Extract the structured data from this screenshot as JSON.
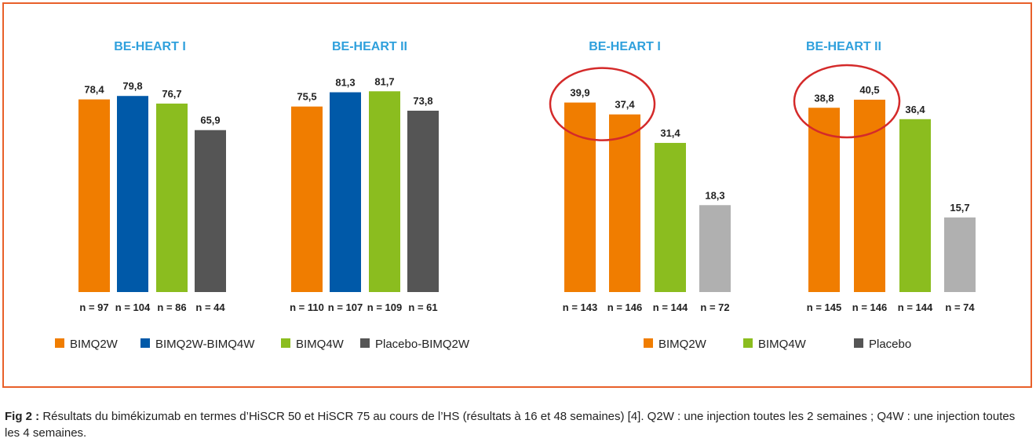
{
  "colors": {
    "frame": "#e8602a",
    "title": "#2fa0dc",
    "circle": "#d42a2a",
    "BIMQ2W": "#f07d00",
    "BIMQ2W-BIMQ4W": "#0059a8",
    "BIMQ4W": "#8bbd1f",
    "Placebo-BIMQ2W": "#555555",
    "Placebo": "#b0b0b0"
  },
  "chart_data": [
    {
      "type": "bar",
      "title": "BE-HEART I",
      "categories": [
        "n = 97",
        "n = 104",
        "n = 86",
        "n = 44"
      ],
      "series_labels": [
        "BIMQ2W",
        "BIMQ2W-BIMQ4W",
        "BIMQ4W",
        "Placebo-BIMQ2W"
      ],
      "values": [
        78.4,
        79.8,
        76.7,
        65.9
      ],
      "value_labels": [
        "78,4",
        "79,8",
        "76,7",
        "65,9"
      ],
      "ylim": [
        0,
        100
      ]
    },
    {
      "type": "bar",
      "title": "BE-HEART II",
      "categories": [
        "n = 110",
        "n = 107",
        "n = 109",
        "n = 61"
      ],
      "series_labels": [
        "BIMQ2W",
        "BIMQ2W-BIMQ4W",
        "BIMQ4W",
        "Placebo-BIMQ2W"
      ],
      "values": [
        75.5,
        81.3,
        81.7,
        73.8
      ],
      "value_labels": [
        "75,5",
        "81,3",
        "81,7",
        "73,8"
      ],
      "ylim": [
        0,
        100
      ]
    },
    {
      "type": "bar",
      "title": "BE-HEART I",
      "categories": [
        "n = 143",
        "n = 146",
        "n = 144",
        "n = 72"
      ],
      "series_labels": [
        "BIMQ2W",
        "BIMQ2W",
        "BIMQ4W",
        "Placebo"
      ],
      "values": [
        39.9,
        37.4,
        31.4,
        18.3
      ],
      "value_labels": [
        "39,9",
        "37,4",
        "31,4",
        "18,3"
      ],
      "ylim": [
        0,
        50
      ],
      "highlight": [
        0,
        1
      ]
    },
    {
      "type": "bar",
      "title": "BE-HEART II",
      "categories": [
        "n = 145",
        "n = 146",
        "n = 144",
        "n = 74"
      ],
      "series_labels": [
        "BIMQ2W",
        "BIMQ2W",
        "BIMQ4W",
        "Placebo"
      ],
      "values": [
        38.8,
        40.5,
        36.4,
        15.7
      ],
      "value_labels": [
        "38,8",
        "40,5",
        "36,4",
        "15,7"
      ],
      "ylim": [
        0,
        50
      ],
      "highlight": [
        0,
        1
      ]
    }
  ],
  "legends": [
    {
      "items": [
        {
          "label": "BIMQ2W",
          "color": "#f07d00"
        },
        {
          "label": "BIMQ2W-BIMQ4W",
          "color": "#0059a8"
        },
        {
          "label": "BIMQ4W",
          "color": "#8bbd1f"
        },
        {
          "label": "Placebo-BIMQ2W",
          "color": "#555555"
        }
      ]
    },
    {
      "items": [
        {
          "label": "BIMQ2W",
          "color": "#f07d00"
        },
        {
          "label": "BIMQ4W",
          "color": "#8bbd1f"
        },
        {
          "label": "Placebo",
          "color": "#555555"
        }
      ]
    }
  ],
  "caption": {
    "label": "Fig 2 :",
    "text": " Résultats du bimékizumab en termes d’HiSCR 50 et HiSCR 75 au cours de l’HS (résultats à 16 et 48 semaines) [4]. Q2W : une injection toutes les 2 semaines ; Q4W : une injection toutes les 4 semaines."
  }
}
